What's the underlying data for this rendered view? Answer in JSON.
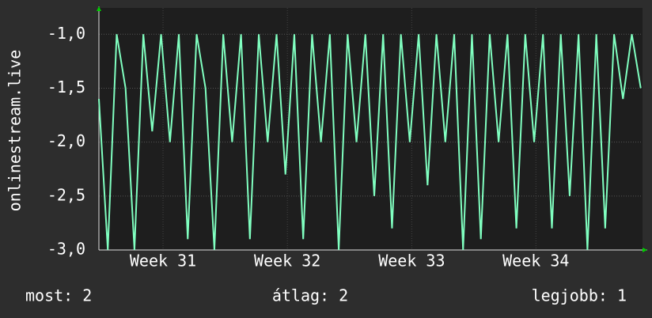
{
  "chart_data": {
    "type": "line",
    "y_label": "onlinestream.live",
    "x": [
      0,
      0.5,
      1,
      1.5,
      2,
      2.5,
      3,
      3.5,
      4,
      4.5,
      5,
      5.5,
      6,
      6.5,
      7,
      7.5,
      8,
      8.5,
      9,
      9.5,
      10,
      10.5,
      11,
      11.5,
      12,
      12.5,
      13,
      13.5,
      14,
      14.5,
      15,
      15.5,
      16,
      16.5,
      17,
      17.5,
      18,
      18.5,
      19,
      19.5,
      20,
      20.5,
      21,
      21.5,
      22,
      22.5,
      23,
      23.5,
      24,
      24.5,
      25,
      25.5,
      26,
      26.5,
      27,
      27.5,
      28,
      28.5,
      29,
      29.5,
      30,
      30.5
    ],
    "series": [
      {
        "color": "#80ffc0",
        "values": [
          -1.6,
          -3.0,
          -1.0,
          -1.5,
          -3.0,
          -1.0,
          -1.9,
          -1.0,
          -2.0,
          -1.0,
          -2.9,
          -1.0,
          -1.5,
          -3.0,
          -1.0,
          -2.0,
          -1.0,
          -2.9,
          -1.0,
          -2.0,
          -1.0,
          -2.3,
          -1.0,
          -2.9,
          -1.0,
          -2.0,
          -1.0,
          -3.0,
          -1.0,
          -2.0,
          -1.0,
          -2.5,
          -1.0,
          -2.8,
          -1.0,
          -2.0,
          -1.0,
          -2.4,
          -1.0,
          -2.0,
          -1.0,
          -3.0,
          -1.0,
          -2.9,
          -1.0,
          -2.0,
          -1.0,
          -2.8,
          -1.0,
          -2.0,
          -1.0,
          -2.8,
          -1.0,
          -2.5,
          -1.0,
          -3.0,
          -1.0,
          -2.8,
          -1.0,
          -1.6,
          -1.0,
          -1.5
        ]
      }
    ],
    "xlim": [
      0,
      30.6
    ],
    "ylim": [
      -3.0,
      -0.8
    ],
    "xticks": [
      {
        "value": 3.61,
        "label": "Week 31"
      },
      {
        "value": 10.61,
        "label": "Week 32"
      },
      {
        "value": 17.61,
        "label": "Week 33"
      },
      {
        "value": 24.6,
        "label": "Week 34"
      }
    ],
    "yticks": [
      {
        "value": -3.0,
        "label": "-3,0"
      },
      {
        "value": -2.5,
        "label": "-2,5"
      },
      {
        "value": -2.0,
        "label": "-2,0"
      },
      {
        "value": -1.5,
        "label": "-1,5"
      },
      {
        "value": -1.0,
        "label": "-1,0"
      }
    ],
    "grid": true,
    "footer": [
      "most: 2",
      "átlag: 2",
      "legjobb: 1"
    ]
  }
}
